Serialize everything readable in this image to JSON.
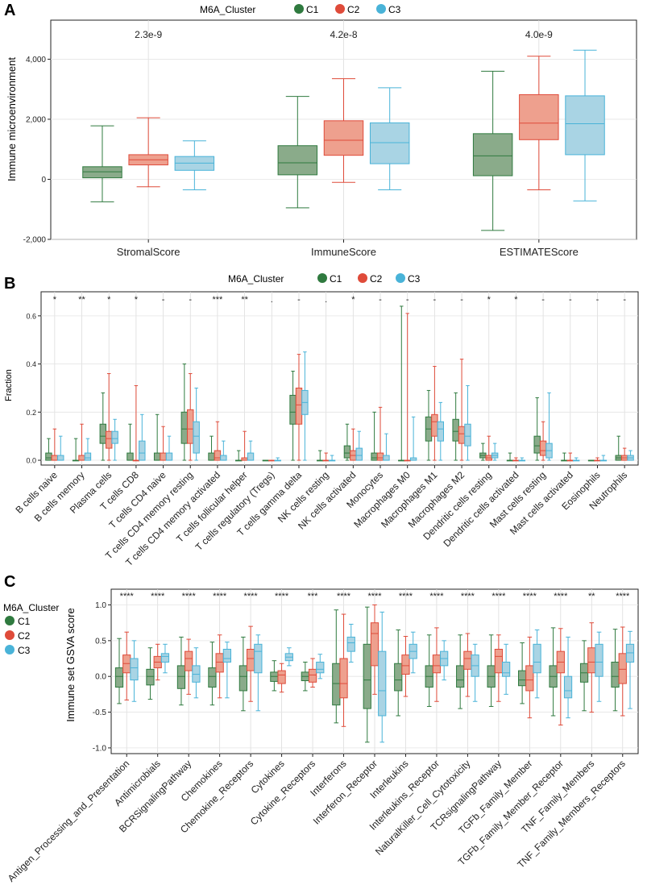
{
  "colors": {
    "C1": "#2f7a3f",
    "C2": "#df4b3a",
    "C3": "#49b3d8",
    "C1_fill": "#8aab8a",
    "C2_fill": "#eea08e",
    "C3_fill": "#a9d4e4"
  },
  "chart_data": [
    {
      "panel": "A",
      "type": "boxplot",
      "legend_title": "M6A_Cluster",
      "legend": [
        "C1",
        "C2",
        "C3"
      ],
      "ylabel": "Immune microenvironment",
      "ylim": [
        -2000,
        5300
      ],
      "yticks": [
        -2000,
        0,
        2000,
        4000
      ],
      "ytick_labels": [
        "-2,000",
        "0",
        "2,000",
        "4,000"
      ],
      "categories": [
        "StromalScore",
        "ImmuneScore",
        "ESTIMATEScore"
      ],
      "pvalues": [
        "2.3e-9",
        "4.2e-8",
        "4.0e-9"
      ],
      "series": [
        {
          "name": "C1",
          "boxes": [
            [
              -750,
              50,
              250,
              420,
              1780
            ],
            [
              -950,
              150,
              550,
              1120,
              2760
            ],
            [
              -1700,
              120,
              780,
              1520,
              3600
            ]
          ]
        },
        {
          "name": "C2",
          "boxes": [
            [
              -250,
              480,
              650,
              820,
              2050
            ],
            [
              -100,
              800,
              1300,
              1950,
              3350
            ],
            [
              -350,
              1320,
              1870,
              2820,
              4100
            ]
          ]
        },
        {
          "name": "C3",
          "boxes": [
            [
              -350,
              300,
              540,
              760,
              1280
            ],
            [
              -350,
              520,
              1220,
              1880,
              3050
            ],
            [
              -720,
              820,
              1850,
              2780,
              4300
            ]
          ]
        }
      ]
    },
    {
      "panel": "B",
      "type": "boxplot",
      "legend_title": "M6A_Cluster",
      "legend": [
        "C1",
        "C2",
        "C3"
      ],
      "ylabel": "Fraction",
      "ylim": [
        -0.02,
        0.7
      ],
      "yticks": [
        0.0,
        0.2,
        0.4,
        0.6
      ],
      "ytick_labels": [
        "0.0",
        "0.2",
        "0.4",
        "0.6"
      ],
      "categories": [
        "B cells naive",
        "B cells memory",
        "Plasma cells",
        "T cells CD8",
        "T cells CD4 naive",
        "T cells CD4 memory resting",
        "T cells CD4 memory activated",
        "T cells follicular helper",
        "T cells regulatory (Tregs)",
        "T cells gamma delta",
        "NK cells resting",
        "NK cells activated",
        "Monocytes",
        "Macrophages M0",
        "Macrophages M1",
        "Macrophages M2",
        "Dendritic cells resting",
        "Dendritic cells activated",
        "Mast cells resting",
        "Mast cells activated",
        "Eosinophils",
        "Neutrophils"
      ],
      "significance": [
        "*",
        "**",
        "*",
        "*",
        "-",
        "-",
        "***",
        "**",
        ".",
        "-",
        ".",
        "*",
        "-",
        "-",
        "-",
        "-",
        "*",
        "*",
        "-",
        "-",
        "-",
        "-"
      ],
      "series": [
        {
          "name": "C1",
          "boxes": [
            [
              0,
              0,
              0.01,
              0.03,
              0.09
            ],
            [
              0,
              0,
              0,
              0,
              0.09
            ],
            [
              0,
              0.07,
              0.1,
              0.15,
              0.28
            ],
            [
              0,
              0,
              0,
              0.03,
              0.15
            ],
            [
              0,
              0,
              0,
              0.03,
              0.19
            ],
            [
              0,
              0.07,
              0.13,
              0.2,
              0.4
            ],
            [
              0,
              0,
              0,
              0.03,
              0.1
            ],
            [
              0,
              0,
              0,
              0,
              0.04
            ],
            [
              0,
              0,
              0,
              0,
              0
            ],
            [
              0,
              0.15,
              0.2,
              0.27,
              0.37
            ],
            [
              0,
              0,
              0,
              0,
              0.04
            ],
            [
              0,
              0.01,
              0.03,
              0.06,
              0.15
            ],
            [
              0,
              0,
              0.01,
              0.03,
              0.2
            ],
            [
              0,
              0,
              0,
              0,
              0.64
            ],
            [
              0,
              0.08,
              0.13,
              0.18,
              0.29
            ],
            [
              0,
              0.08,
              0.12,
              0.17,
              0.28
            ],
            [
              0,
              0.01,
              0.02,
              0.03,
              0.07
            ],
            [
              0,
              0,
              0,
              0,
              0.03
            ],
            [
              0,
              0.03,
              0.06,
              0.1,
              0.26
            ],
            [
              0,
              0,
              0,
              0,
              0.03
            ],
            [
              0,
              0,
              0,
              0,
              0
            ],
            [
              0,
              0,
              0.01,
              0.02,
              0.1
            ]
          ]
        },
        {
          "name": "C2",
          "boxes": [
            [
              0,
              0,
              0,
              0.02,
              0.13
            ],
            [
              0,
              0,
              0,
              0.02,
              0.15
            ],
            [
              0,
              0.05,
              0.09,
              0.12,
              0.36
            ],
            [
              0,
              0,
              0,
              0,
              0.31
            ],
            [
              0,
              0,
              0,
              0.03,
              0.14
            ],
            [
              0,
              0.07,
              0.13,
              0.21,
              0.36
            ],
            [
              0,
              0,
              0.01,
              0.04,
              0.16
            ],
            [
              0,
              0,
              0,
              0.01,
              0.12
            ],
            [
              0,
              0,
              0,
              0,
              0
            ],
            [
              0,
              0.15,
              0.23,
              0.3,
              0.44
            ],
            [
              0,
              0,
              0,
              0,
              0.03
            ],
            [
              0,
              0,
              0.02,
              0.04,
              0.13
            ],
            [
              0,
              0,
              0.01,
              0.03,
              0.22
            ],
            [
              0,
              0,
              0,
              0,
              0.61
            ],
            [
              0,
              0.1,
              0.16,
              0.19,
              0.39
            ],
            [
              0,
              0.07,
              0.11,
              0.14,
              0.42
            ],
            [
              0,
              0,
              0.01,
              0.02,
              0.1
            ],
            [
              0,
              0,
              0,
              0,
              0.01
            ],
            [
              0,
              0.02,
              0.04,
              0.08,
              0.16
            ],
            [
              0,
              0,
              0,
              0,
              0.03
            ],
            [
              0,
              0,
              0,
              0,
              0.01
            ],
            [
              0,
              0,
              0.01,
              0.02,
              0.05
            ]
          ]
        },
        {
          "name": "C3",
          "boxes": [
            [
              0,
              0,
              0,
              0.02,
              0.1
            ],
            [
              0,
              0,
              0.01,
              0.03,
              0.09
            ],
            [
              0,
              0.07,
              0.09,
              0.12,
              0.17
            ],
            [
              0,
              0,
              0.03,
              0.08,
              0.19
            ],
            [
              0,
              0,
              0,
              0.03,
              0.1
            ],
            [
              0,
              0.03,
              0.1,
              0.16,
              0.3
            ],
            [
              0,
              0,
              0,
              0.02,
              0.08
            ],
            [
              0,
              0,
              0,
              0.03,
              0.08
            ],
            [
              0,
              0,
              0,
              0,
              0.01
            ],
            [
              0,
              0.19,
              0.24,
              0.29,
              0.45
            ],
            [
              0,
              0,
              0,
              0,
              0.02
            ],
            [
              0,
              0,
              0.02,
              0.05,
              0.12
            ],
            [
              0,
              0,
              0,
              0.02,
              0.11
            ],
            [
              0,
              0,
              0,
              0.01,
              0.18
            ],
            [
              0,
              0.08,
              0.13,
              0.16,
              0.24
            ],
            [
              0,
              0.06,
              0.1,
              0.15,
              0.31
            ],
            [
              0,
              0.01,
              0.02,
              0.03,
              0.07
            ],
            [
              0,
              0,
              0,
              0,
              0.01
            ],
            [
              0,
              0.01,
              0.04,
              0.07,
              0.28
            ],
            [
              0,
              0,
              0,
              0,
              0.01
            ],
            [
              0,
              0,
              0,
              0,
              0.02
            ],
            [
              0,
              0,
              0.01,
              0.02,
              0.04
            ]
          ]
        }
      ]
    },
    {
      "panel": "C",
      "type": "boxplot",
      "legend_title": "M6A_Cluster",
      "legend": [
        "C1",
        "C2",
        "C3"
      ],
      "ylabel": "Immune set GSVA score",
      "ylim": [
        -1.08,
        1.22
      ],
      "yticks": [
        -1.0,
        -0.5,
        0.0,
        0.5,
        1.0
      ],
      "ytick_labels": [
        "-1.0",
        "-0.5",
        "0.0",
        "0.5",
        "1.0"
      ],
      "categories": [
        "Antigen_Processing_and_Presentation",
        "Antimicrobials",
        "BCRSignalingPathway",
        "Chemokines",
        "Chemokine_Receptors",
        "Cytokines",
        "Cytokine_Receptors",
        "Interferons",
        "Interferon_Receptor",
        "Interleukins",
        "Interleukins_Receptor",
        "NaturalKiller_Cell_Cytotoxicity",
        "TCRsignalingPathway",
        "TGFb_Family_Member",
        "TGFb_Family_Member_Receptor",
        "TNF_Family_Members",
        "TNF_Family_Members_Receptors"
      ],
      "significance": [
        "****",
        "****",
        "****",
        "****",
        "****",
        "****",
        "***",
        "****",
        "****",
        "****",
        "****",
        "****",
        "****",
        "****",
        "****",
        "**",
        "****"
      ],
      "series": [
        {
          "name": "C1",
          "boxes": [
            [
              -0.38,
              -0.15,
              0,
              0.12,
              0.53
            ],
            [
              -0.32,
              -0.12,
              0,
              0.1,
              0.4
            ],
            [
              -0.4,
              -0.17,
              0,
              0.15,
              0.55
            ],
            [
              -0.4,
              -0.15,
              0,
              0.12,
              0.48
            ],
            [
              -0.48,
              -0.2,
              0,
              0.15,
              0.55
            ],
            [
              -0.2,
              -0.07,
              0,
              0.06,
              0.22
            ],
            [
              -0.2,
              -0.06,
              0,
              0.06,
              0.2
            ],
            [
              -0.65,
              -0.4,
              -0.1,
              0.18,
              0.93
            ],
            [
              -0.92,
              -0.45,
              -0.05,
              0.45,
              0.97
            ],
            [
              -0.55,
              -0.2,
              -0.05,
              0.18,
              0.65
            ],
            [
              -0.42,
              -0.15,
              0,
              0.15,
              0.58
            ],
            [
              -0.45,
              -0.15,
              -0.05,
              0.15,
              0.58
            ],
            [
              -0.42,
              -0.15,
              0,
              0.15,
              0.58
            ],
            [
              -0.38,
              -0.13,
              -0.05,
              0.08,
              0.47
            ],
            [
              -0.55,
              -0.15,
              0,
              0.15,
              0.68
            ],
            [
              -0.48,
              -0.08,
              0.05,
              0.18,
              0.5
            ],
            [
              -0.48,
              -0.15,
              0,
              0.2,
              0.66
            ]
          ]
        },
        {
          "name": "C2",
          "boxes": [
            [
              -0.33,
              0.05,
              0.18,
              0.3,
              0.62
            ],
            [
              -0.05,
              0.12,
              0.2,
              0.28,
              0.45
            ],
            [
              -0.25,
              0.08,
              0.25,
              0.35,
              0.52
            ],
            [
              -0.3,
              0.06,
              0.2,
              0.32,
              0.58
            ],
            [
              -0.35,
              0.08,
              0.25,
              0.38,
              0.7
            ],
            [
              -0.22,
              -0.1,
              0.02,
              0.08,
              0.18
            ],
            [
              -0.15,
              -0.08,
              0.02,
              0.1,
              0.25
            ],
            [
              -0.7,
              -0.3,
              -0.1,
              0.25,
              0.87
            ],
            [
              -0.25,
              0.15,
              0.6,
              0.75,
              1.0
            ],
            [
              -0.28,
              0.03,
              0.15,
              0.3,
              0.56
            ],
            [
              -0.35,
              0.05,
              0.15,
              0.3,
              0.68
            ],
            [
              -0.28,
              0.1,
              0.25,
              0.35,
              0.6
            ],
            [
              -0.35,
              0.05,
              0.28,
              0.38,
              0.58
            ],
            [
              -0.58,
              -0.2,
              -0.05,
              0.15,
              0.55
            ],
            [
              -0.68,
              0.05,
              0.2,
              0.35,
              0.67
            ],
            [
              -0.5,
              0.05,
              0.2,
              0.4,
              0.75
            ],
            [
              -0.55,
              -0.1,
              0.1,
              0.32,
              0.69
            ]
          ]
        },
        {
          "name": "C3",
          "boxes": [
            [
              -0.35,
              -0.05,
              0.12,
              0.25,
              0.5
            ],
            [
              0.05,
              0.2,
              0.28,
              0.32,
              0.45
            ],
            [
              -0.3,
              -0.08,
              0.03,
              0.15,
              0.4
            ],
            [
              -0.3,
              0.2,
              0.25,
              0.38,
              0.48
            ],
            [
              -0.48,
              0.05,
              0.35,
              0.45,
              0.58
            ],
            [
              0.15,
              0.22,
              0.27,
              0.32,
              0.4
            ],
            [
              -0.03,
              0.05,
              0.1,
              0.2,
              0.31
            ],
            [
              0.2,
              0.35,
              0.47,
              0.55,
              0.73
            ],
            [
              -0.92,
              -0.55,
              -0.2,
              0.35,
              0.9
            ],
            [
              0.05,
              0.25,
              0.35,
              0.45,
              0.62
            ],
            [
              -0.05,
              0.15,
              0.25,
              0.35,
              0.5
            ],
            [
              -0.35,
              0,
              0.15,
              0.3,
              0.45
            ],
            [
              -0.25,
              0,
              0.05,
              0.2,
              0.45
            ],
            [
              -0.3,
              0.05,
              0.2,
              0.45,
              0.65
            ],
            [
              -0.58,
              -0.3,
              -0.2,
              0,
              0.55
            ],
            [
              -0.35,
              0,
              0.2,
              0.45,
              0.62
            ],
            [
              -0.45,
              0.2,
              0.33,
              0.45,
              0.63
            ]
          ]
        }
      ]
    }
  ]
}
